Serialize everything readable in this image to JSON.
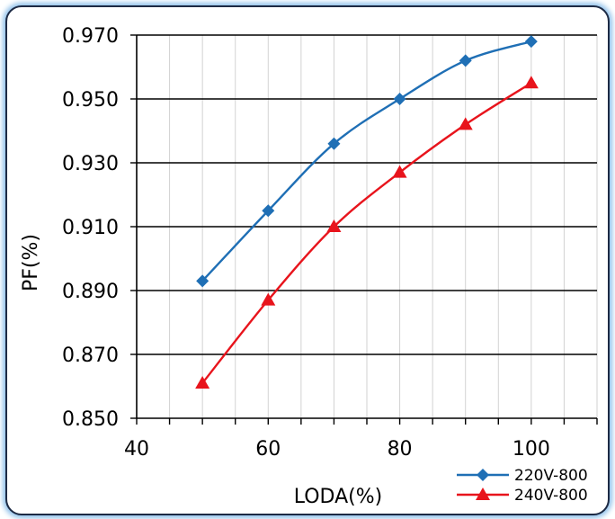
{
  "chart_data": {
    "type": "line",
    "title": "",
    "xlabel": "LODA(%)",
    "ylabel": "PF(%)",
    "xlim": [
      40,
      110
    ],
    "ylim": [
      0.85,
      0.97
    ],
    "x_ticks": [
      40,
      60,
      80,
      100
    ],
    "x_tick_labels": [
      "40",
      "60",
      "80",
      "100"
    ],
    "y_ticks": [
      0.85,
      0.87,
      0.89,
      0.91,
      0.93,
      0.95,
      0.97
    ],
    "y_tick_labels": [
      "0.850",
      "0.870",
      "0.890",
      "0.910",
      "0.930",
      "0.950",
      "0.970"
    ],
    "x_minor_step": 5,
    "grid": true,
    "legend_position": "bottom-right",
    "series": [
      {
        "name": "220V-800",
        "color": "#1f6fb5",
        "marker": "diamond",
        "x": [
          50,
          60,
          70,
          80,
          90,
          100
        ],
        "y": [
          0.893,
          0.915,
          0.936,
          0.95,
          0.962,
          0.968
        ]
      },
      {
        "name": "240V-800",
        "color": "#e8141c",
        "marker": "triangle",
        "x": [
          50,
          60,
          70,
          80,
          90,
          100
        ],
        "y": [
          0.861,
          0.887,
          0.91,
          0.927,
          0.942,
          0.955
        ]
      }
    ]
  }
}
